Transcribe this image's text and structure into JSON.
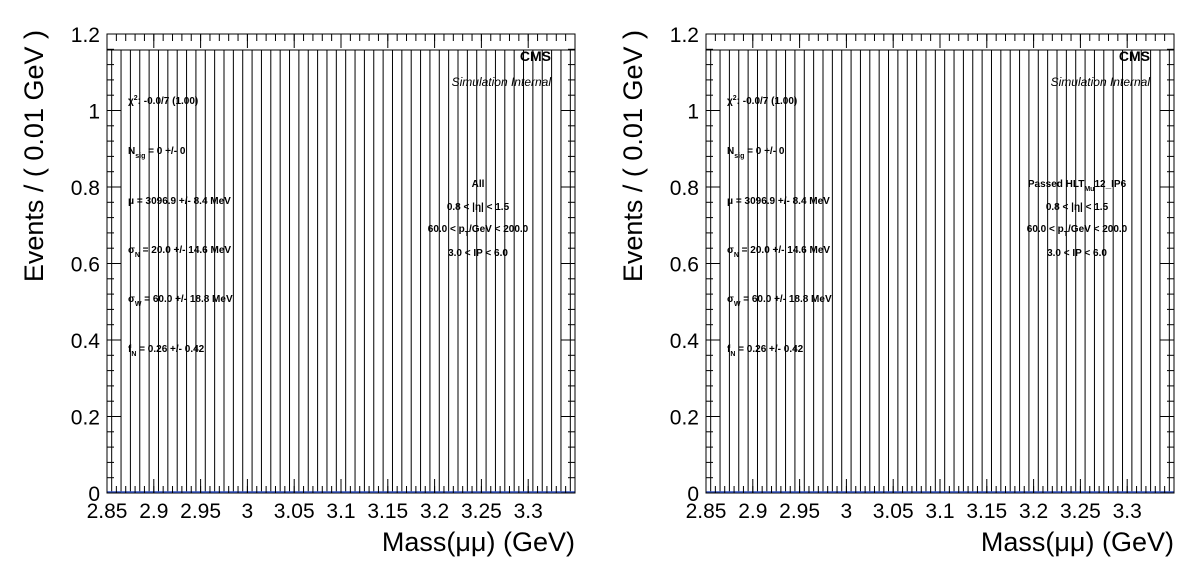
{
  "chart_data": [
    {
      "type": "bar",
      "xlabel": "Mass(μμ) (GeV)",
      "ylabel": "Events / ( 0.01 GeV )",
      "xlim": [
        2.85,
        3.35
      ],
      "ylim": [
        0,
        1.2
      ],
      "x_ticks": [
        "2.85",
        "2.9",
        "2.95",
        "3",
        "3.05",
        "3.1",
        "3.15",
        "3.2",
        "3.25",
        "3.3"
      ],
      "y_ticks": [
        "0",
        "0.2",
        "0.4",
        "0.6",
        "0.8",
        "1",
        "1.2"
      ],
      "bin_width": 0.01,
      "values": [
        0,
        0,
        0,
        0,
        0,
        0,
        0,
        0,
        0,
        0,
        0,
        0,
        0,
        0,
        0,
        0,
        0,
        0,
        0,
        0,
        0,
        0,
        0,
        0,
        0,
        0,
        0,
        0,
        0,
        0,
        0,
        0,
        0,
        0,
        0,
        0,
        0,
        0,
        0,
        0,
        0,
        0,
        0,
        0,
        0,
        0,
        0,
        0,
        0,
        0
      ],
      "labels": {
        "experiment": "CMS",
        "status": "Simulation Internal",
        "chi2": "χ²: -0.0/7 (1.00)",
        "nsig": "N_sig = 0 +/- 0",
        "mu": "μ = 3096.9 +/- 8.4 MeV",
        "sigma_n": "σ_N = 20.0 +/- 14.6 MeV",
        "sigma_w": "σ_W = 60.0 +/- 18.8 MeV",
        "f_n": "f_N = 0.26 +/- 0.42",
        "category": "All",
        "eta": "0.8 < |η| < 1.5",
        "pt": "60.0 < p_T/GeV < 200.0",
        "ip": "3.0 < IP < 6.0"
      }
    },
    {
      "type": "bar",
      "xlabel": "Mass(μμ) (GeV)",
      "ylabel": "Events / ( 0.01 GeV )",
      "xlim": [
        2.85,
        3.35
      ],
      "ylim": [
        0,
        1.2
      ],
      "x_ticks": [
        "2.85",
        "2.9",
        "2.95",
        "3",
        "3.05",
        "3.1",
        "3.15",
        "3.2",
        "3.25",
        "3.3"
      ],
      "y_ticks": [
        "0",
        "0.2",
        "0.4",
        "0.6",
        "0.8",
        "1",
        "1.2"
      ],
      "bin_width": 0.01,
      "values": [
        0,
        0,
        0,
        0,
        0,
        0,
        0,
        0,
        0,
        0,
        0,
        0,
        0,
        0,
        0,
        0,
        0,
        0,
        0,
        0,
        0,
        0,
        0,
        0,
        0,
        0,
        0,
        0,
        0,
        0,
        0,
        0,
        0,
        0,
        0,
        0,
        0,
        0,
        0,
        0,
        0,
        0,
        0,
        0,
        0,
        0,
        0,
        0,
        0,
        0
      ],
      "labels": {
        "experiment": "CMS",
        "status": "Simulation Internal",
        "chi2": "χ²: -0.0/7 (1.00)",
        "nsig": "N_sig = 0 +/- 0",
        "mu": "μ = 3096.9 +/- 8.4 MeV",
        "sigma_n": "σ_N = 20.0 +/- 14.6 MeV",
        "sigma_w": "σ_W = 60.0 +/- 18.8 MeV",
        "f_n": "f_N = 0.26 +/- 0.42",
        "category": "Passed HLT_Mu12_IP6",
        "eta": "0.8 < |η| < 1.5",
        "pt": "60.0 < p_T/GeV < 200.0",
        "ip": "3.0 < IP < 6.0"
      }
    }
  ]
}
